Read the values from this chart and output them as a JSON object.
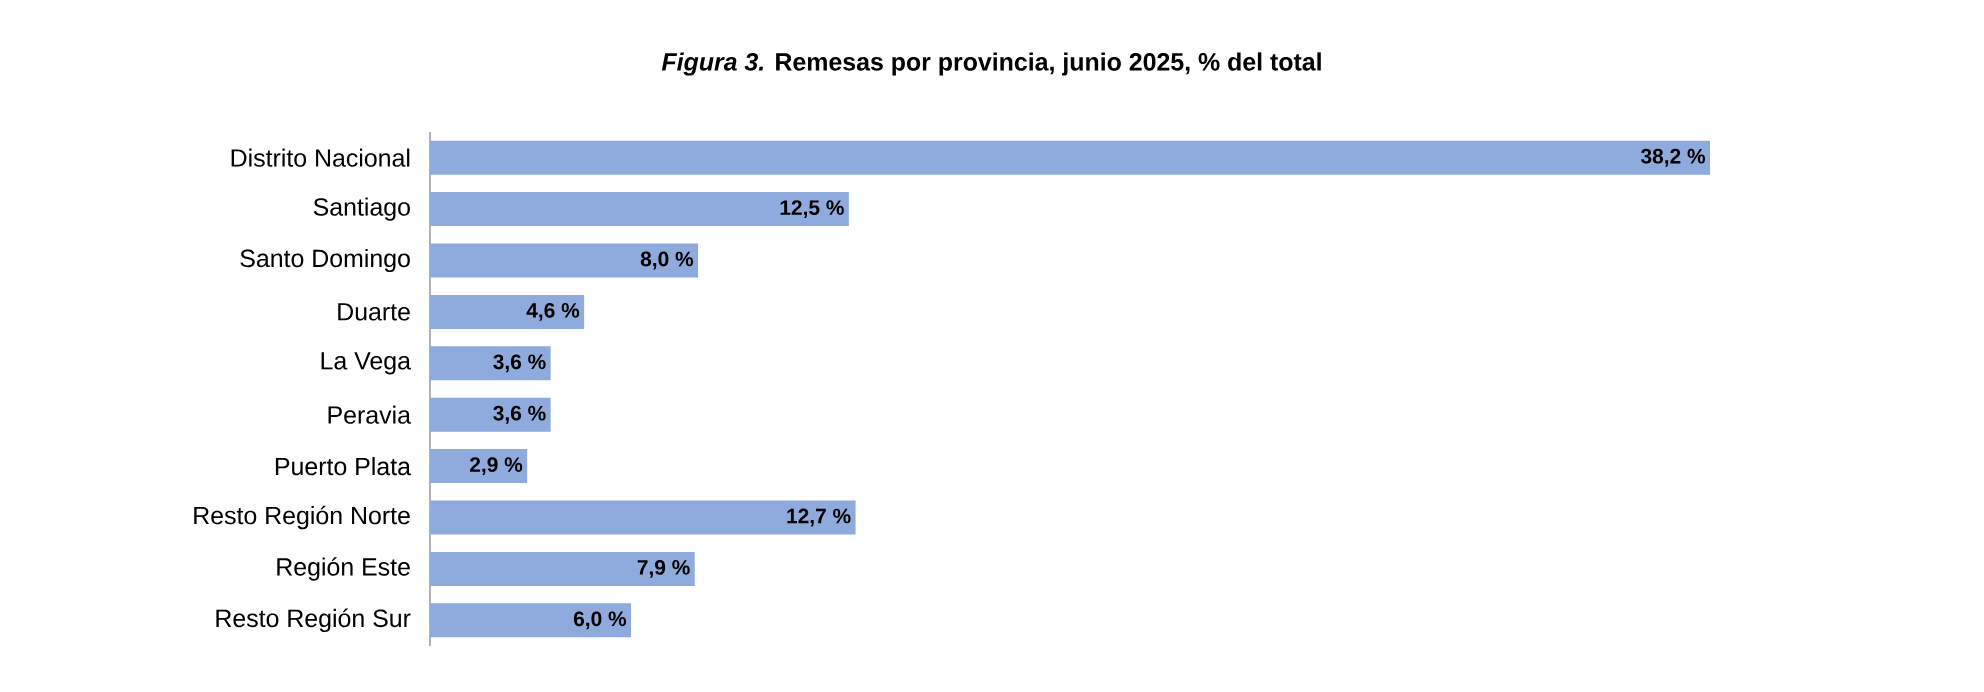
{
  "chart_data": {
    "type": "bar",
    "orientation": "horizontal",
    "title": "*Figura 3.* Remesas por provincia, junio 2025, % del total",
    "categories": [
      "Distrito Nacional",
      "Santiago",
      "Santo Domingo",
      "Duarte",
      "La Vega",
      "Peravia",
      "Puerto Plata",
      "Resto Región Norte",
      "Región Este",
      "Resto Región Sur"
    ],
    "values": [
      38.2,
      12.5,
      8.0,
      4.6,
      3.6,
      3.6,
      2.9,
      12.7,
      7.9,
      6.0
    ],
    "value_labels": [
      "38,2 %",
      "12,5 %",
      "8,0 %",
      "4,6 %",
      "3,6 %",
      "3,6 %",
      "2,9 %",
      "12,7 %",
      "7,9 %",
      "6,0 %"
    ],
    "color": "#8faadc"
  }
}
